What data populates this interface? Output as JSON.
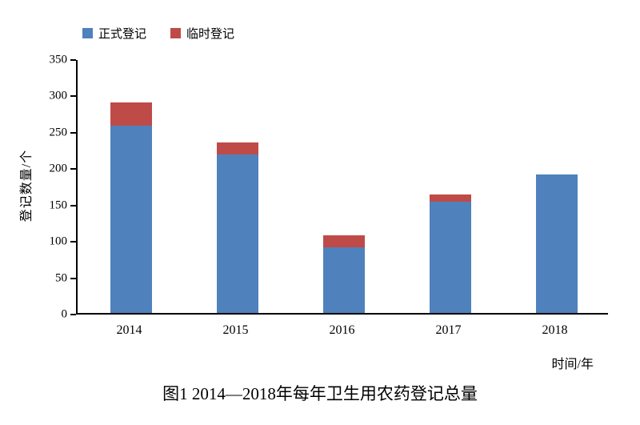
{
  "chart_data": {
    "type": "bar",
    "stacked": true,
    "categories": [
      "2014",
      "2015",
      "2016",
      "2017",
      "2018"
    ],
    "series": [
      {
        "name": "正式登记",
        "color": "#4F81BD",
        "values": [
          258,
          218,
          90,
          153,
          190
        ]
      },
      {
        "name": "临时登记",
        "color": "#BE4B48",
        "values": [
          32,
          17,
          17,
          10,
          0
        ]
      }
    ],
    "totals": [
      290,
      235,
      107,
      163,
      190
    ],
    "title": "图1 2014—2018年每年卫生用农药登记总量",
    "xlabel": "时间/年",
    "ylabel": "登记数量/个",
    "ylim": [
      0,
      350
    ],
    "yticks": [
      0,
      50,
      100,
      150,
      200,
      250,
      300,
      350
    ],
    "grid": false,
    "legend_position": "top-left",
    "axis_color": "#000000"
  }
}
